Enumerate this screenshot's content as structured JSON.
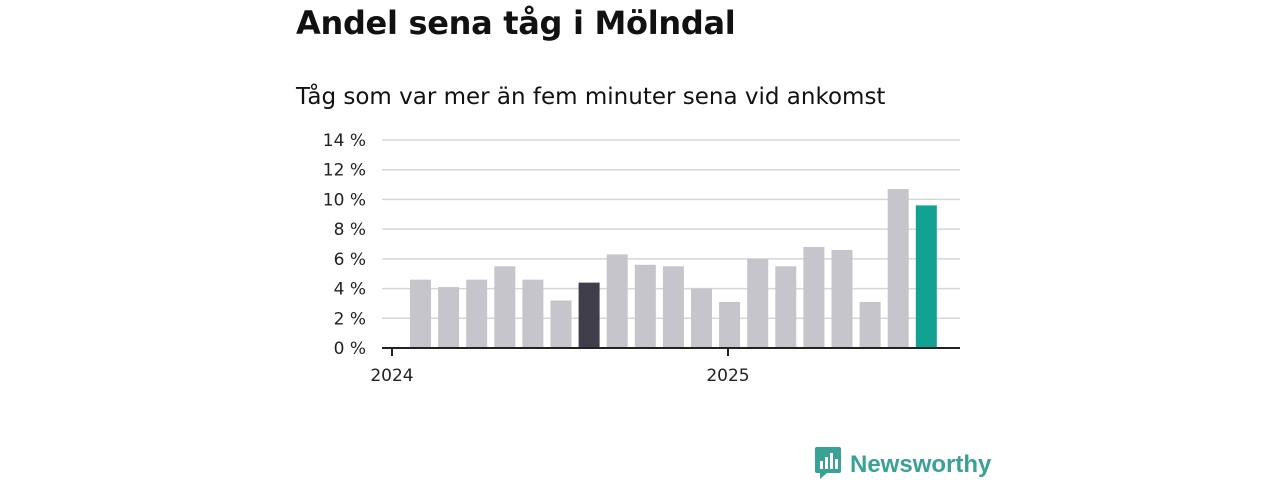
{
  "title": "Andel sena tåg i Mölndal",
  "subtitle": "Tåg som var mer än fem minuter sena vid ankomst",
  "brand": {
    "name": "Newsworthy",
    "icon": "bar-chart-logo-icon"
  },
  "colors": {
    "bar_default": "#c6c5cc",
    "bar_highlight_dark": "#3f3e4a",
    "bar_highlight_teal": "#12a294",
    "grid": "#d6d6da",
    "axis": "#222222",
    "brand": "#3aa195"
  },
  "chart_data": {
    "type": "bar",
    "title": "Andel sena tåg i Mölndal",
    "subtitle": "Tåg som var mer än fem minuter sena vid ankomst",
    "x_tick_labels": [
      "2024",
      "2025"
    ],
    "y_tick_labels": [
      "0 %",
      "2 %",
      "4 %",
      "6 %",
      "8 %",
      "10 %",
      "12 %",
      "14 %"
    ],
    "ylim": [
      0,
      14
    ],
    "y_unit": "%",
    "grid": true,
    "legend": "none",
    "values": [
      4.6,
      4.1,
      4.6,
      5.5,
      4.6,
      3.2,
      4.4,
      6.3,
      5.6,
      5.5,
      4.0,
      3.1,
      6.0,
      5.5,
      6.8,
      6.6,
      3.1,
      10.7,
      9.6
    ],
    "highlight": {
      "6": "bar_highlight_dark",
      "18": "bar_highlight_teal"
    }
  }
}
